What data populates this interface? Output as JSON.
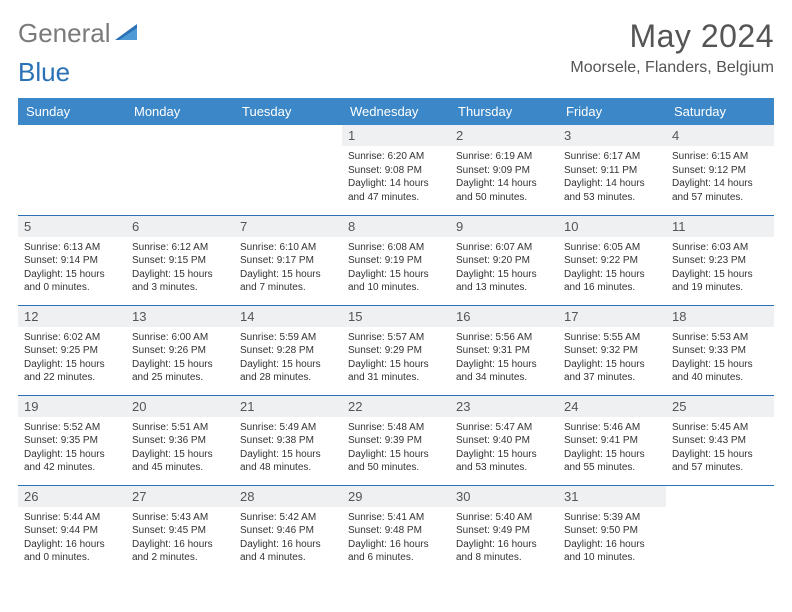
{
  "brand": {
    "part1": "General",
    "part2": "Blue"
  },
  "title": "May 2024",
  "location": "Moorsele, Flanders, Belgium",
  "colors": {
    "header_bg": "#3b87c8",
    "row_divider": "#2a72b5",
    "daynum_bg": "#eef0f2",
    "logo_gray": "#7a7a7a",
    "logo_blue": "#2a72b5",
    "title_color": "#555555"
  },
  "weekdays": [
    "Sunday",
    "Monday",
    "Tuesday",
    "Wednesday",
    "Thursday",
    "Friday",
    "Saturday"
  ],
  "grid": [
    [
      null,
      null,
      null,
      {
        "n": "1",
        "sr": "6:20 AM",
        "ss": "9:08 PM",
        "dl": "14 hours and 47 minutes."
      },
      {
        "n": "2",
        "sr": "6:19 AM",
        "ss": "9:09 PM",
        "dl": "14 hours and 50 minutes."
      },
      {
        "n": "3",
        "sr": "6:17 AM",
        "ss": "9:11 PM",
        "dl": "14 hours and 53 minutes."
      },
      {
        "n": "4",
        "sr": "6:15 AM",
        "ss": "9:12 PM",
        "dl": "14 hours and 57 minutes."
      }
    ],
    [
      {
        "n": "5",
        "sr": "6:13 AM",
        "ss": "9:14 PM",
        "dl": "15 hours and 0 minutes."
      },
      {
        "n": "6",
        "sr": "6:12 AM",
        "ss": "9:15 PM",
        "dl": "15 hours and 3 minutes."
      },
      {
        "n": "7",
        "sr": "6:10 AM",
        "ss": "9:17 PM",
        "dl": "15 hours and 7 minutes."
      },
      {
        "n": "8",
        "sr": "6:08 AM",
        "ss": "9:19 PM",
        "dl": "15 hours and 10 minutes."
      },
      {
        "n": "9",
        "sr": "6:07 AM",
        "ss": "9:20 PM",
        "dl": "15 hours and 13 minutes."
      },
      {
        "n": "10",
        "sr": "6:05 AM",
        "ss": "9:22 PM",
        "dl": "15 hours and 16 minutes."
      },
      {
        "n": "11",
        "sr": "6:03 AM",
        "ss": "9:23 PM",
        "dl": "15 hours and 19 minutes."
      }
    ],
    [
      {
        "n": "12",
        "sr": "6:02 AM",
        "ss": "9:25 PM",
        "dl": "15 hours and 22 minutes."
      },
      {
        "n": "13",
        "sr": "6:00 AM",
        "ss": "9:26 PM",
        "dl": "15 hours and 25 minutes."
      },
      {
        "n": "14",
        "sr": "5:59 AM",
        "ss": "9:28 PM",
        "dl": "15 hours and 28 minutes."
      },
      {
        "n": "15",
        "sr": "5:57 AM",
        "ss": "9:29 PM",
        "dl": "15 hours and 31 minutes."
      },
      {
        "n": "16",
        "sr": "5:56 AM",
        "ss": "9:31 PM",
        "dl": "15 hours and 34 minutes."
      },
      {
        "n": "17",
        "sr": "5:55 AM",
        "ss": "9:32 PM",
        "dl": "15 hours and 37 minutes."
      },
      {
        "n": "18",
        "sr": "5:53 AM",
        "ss": "9:33 PM",
        "dl": "15 hours and 40 minutes."
      }
    ],
    [
      {
        "n": "19",
        "sr": "5:52 AM",
        "ss": "9:35 PM",
        "dl": "15 hours and 42 minutes."
      },
      {
        "n": "20",
        "sr": "5:51 AM",
        "ss": "9:36 PM",
        "dl": "15 hours and 45 minutes."
      },
      {
        "n": "21",
        "sr": "5:49 AM",
        "ss": "9:38 PM",
        "dl": "15 hours and 48 minutes."
      },
      {
        "n": "22",
        "sr": "5:48 AM",
        "ss": "9:39 PM",
        "dl": "15 hours and 50 minutes."
      },
      {
        "n": "23",
        "sr": "5:47 AM",
        "ss": "9:40 PM",
        "dl": "15 hours and 53 minutes."
      },
      {
        "n": "24",
        "sr": "5:46 AM",
        "ss": "9:41 PM",
        "dl": "15 hours and 55 minutes."
      },
      {
        "n": "25",
        "sr": "5:45 AM",
        "ss": "9:43 PM",
        "dl": "15 hours and 57 minutes."
      }
    ],
    [
      {
        "n": "26",
        "sr": "5:44 AM",
        "ss": "9:44 PM",
        "dl": "16 hours and 0 minutes."
      },
      {
        "n": "27",
        "sr": "5:43 AM",
        "ss": "9:45 PM",
        "dl": "16 hours and 2 minutes."
      },
      {
        "n": "28",
        "sr": "5:42 AM",
        "ss": "9:46 PM",
        "dl": "16 hours and 4 minutes."
      },
      {
        "n": "29",
        "sr": "5:41 AM",
        "ss": "9:48 PM",
        "dl": "16 hours and 6 minutes."
      },
      {
        "n": "30",
        "sr": "5:40 AM",
        "ss": "9:49 PM",
        "dl": "16 hours and 8 minutes."
      },
      {
        "n": "31",
        "sr": "5:39 AM",
        "ss": "9:50 PM",
        "dl": "16 hours and 10 minutes."
      },
      null
    ]
  ],
  "labels": {
    "sunrise": "Sunrise:",
    "sunset": "Sunset:",
    "daylight": "Daylight:"
  }
}
